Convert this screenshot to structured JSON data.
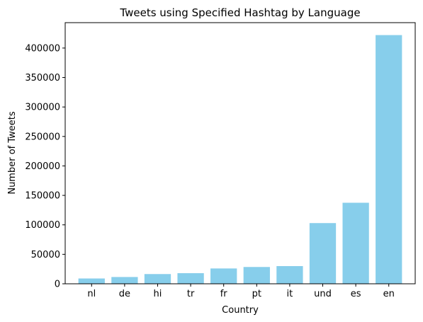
{
  "chart_data": {
    "type": "bar",
    "title": "Tweets using Specified Hashtag by Language",
    "xlabel": "Country",
    "ylabel": "Number of Tweets",
    "categories": [
      "nl",
      "de",
      "hi",
      "tr",
      "fr",
      "pt",
      "it",
      "und",
      "es",
      "en"
    ],
    "values": [
      9000,
      11500,
      16500,
      18000,
      26000,
      28500,
      30000,
      103000,
      137500,
      422000
    ],
    "ylim": [
      0,
      443100
    ],
    "yticks": [
      0,
      50000,
      100000,
      150000,
      200000,
      250000,
      300000,
      350000,
      400000
    ],
    "bar_color": "#87ceeb",
    "grid": false,
    "legend": "none"
  }
}
